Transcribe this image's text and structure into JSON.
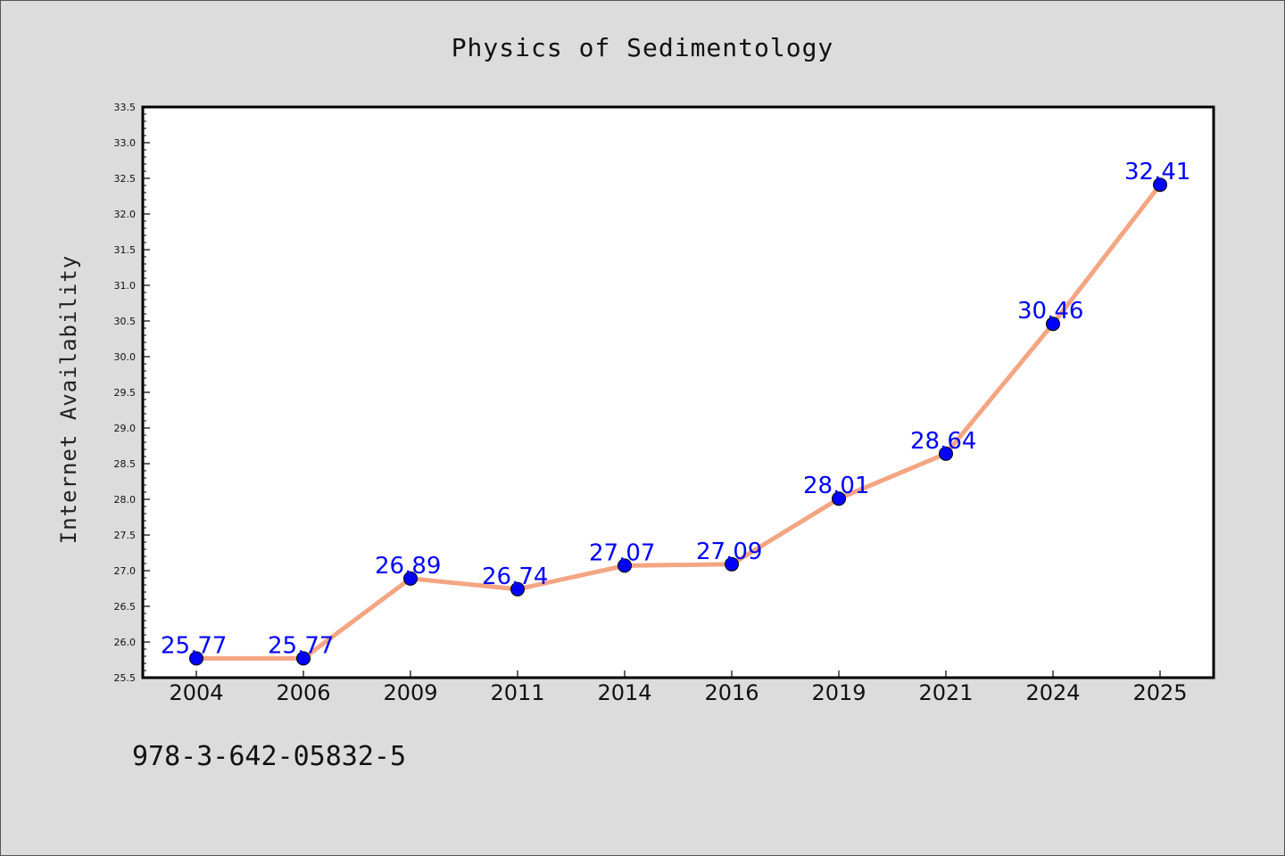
{
  "colors": {
    "background": "#dcdcdc",
    "plot_background": "#ffffff",
    "line": "#f4a582",
    "marker": "#0000ff",
    "label": "#0000ff"
  },
  "footnote": "978-3-642-05832-5",
  "chart_data": {
    "type": "line",
    "title": "Physics of Sedimentology",
    "xlabel": "",
    "ylabel": "Internet Availability",
    "categories": [
      "2004",
      "2006",
      "2009",
      "2011",
      "2014",
      "2016",
      "2019",
      "2021",
      "2024",
      "2025"
    ],
    "values": [
      25.77,
      25.77,
      26.89,
      26.74,
      27.07,
      27.09,
      28.01,
      28.64,
      30.46,
      32.41
    ],
    "data_labels": [
      "25.77",
      "25.77",
      "26.89",
      "26.74",
      "27.07",
      "27.09",
      "28.01",
      "28.64",
      "30.46",
      "32.41"
    ],
    "ylim": [
      25.5,
      33.5
    ],
    "yticks": [
      "25.5",
      "26.0",
      "26.5",
      "27.0",
      "27.5",
      "28.0",
      "28.5",
      "29.0",
      "29.5",
      "30.0",
      "30.5",
      "31.0",
      "31.5",
      "32.0",
      "32.5",
      "33.0",
      "33.5"
    ],
    "grid": false,
    "legend": "none"
  }
}
